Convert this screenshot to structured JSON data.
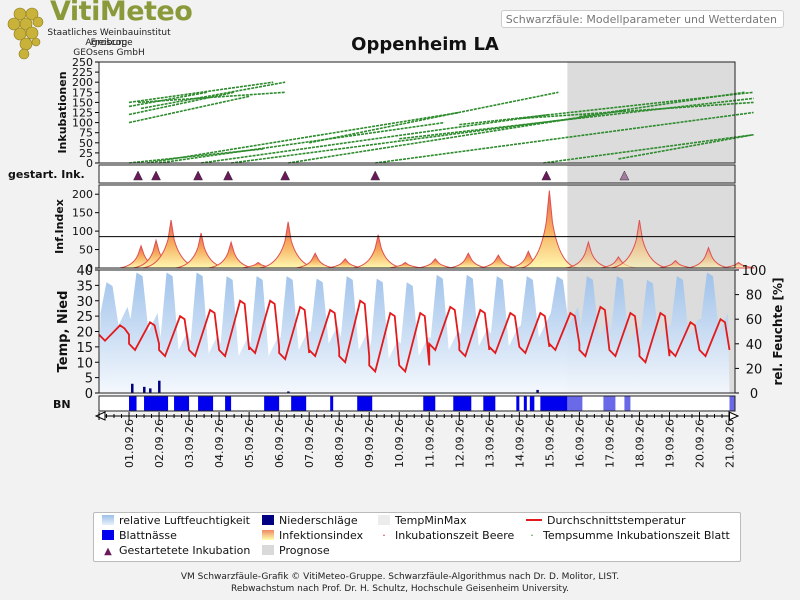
{
  "brand": {
    "name": "VitiMeteo",
    "lines": [
      "Staatliches Weinbauinstitut Freiburg",
      "Agroscope",
      "GEOsens GmbH"
    ]
  },
  "header": {
    "subtitle": "Schwarzfäule: Modellparameter und Wetterdaten"
  },
  "chart_title": "Oppenheim LA",
  "colors": {
    "temp": "#e31a1c",
    "humidity": "#a8c8ee",
    "incubation": "#2e8b2e",
    "leaf_wetness": "#0000ee",
    "precip": "#000080",
    "started_marker": "#6a1a5a",
    "forecast": "#d9d9d9",
    "infection_fill_top": "#ee8866",
    "infection_fill_bottom": "#ffffaa"
  },
  "chart_data": [
    {
      "panel": "incubation",
      "type": "line",
      "ylabel": "Inkubationen",
      "ylim": [
        0,
        250
      ],
      "yticks": [
        0,
        25,
        50,
        75,
        100,
        125,
        150,
        175,
        200,
        225,
        250
      ],
      "series_note": "Inkubationszeit Beere / Tempsumme Inkubationszeit Blatt",
      "lines": [
        {
          "start_day": 0.0,
          "end_day": 4.0,
          "y0": 100,
          "y1": 165
        },
        {
          "start_day": 0.0,
          "end_day": 3.5,
          "y0": 120,
          "y1": 175
        },
        {
          "start_day": 0.0,
          "end_day": 4.8,
          "y0": 150,
          "y1": 200
        },
        {
          "start_day": 0.0,
          "end_day": 2.6,
          "y0": 140,
          "y1": 175
        },
        {
          "start_day": 0.4,
          "end_day": 5.2,
          "y0": 135,
          "y1": 200
        },
        {
          "start_day": 0.3,
          "end_day": 5.2,
          "y0": 150,
          "y1": 175
        },
        {
          "start_day": 0.0,
          "end_day": 4.5,
          "y0": 0,
          "y1": 35
        },
        {
          "start_day": 0.6,
          "end_day": 11.0,
          "y0": 0,
          "y1": 125
        },
        {
          "start_day": 1.0,
          "end_day": 10.5,
          "y0": 0,
          "y1": 100
        },
        {
          "start_day": 2.4,
          "end_day": 14.0,
          "y0": 0,
          "y1": 120
        },
        {
          "start_day": 3.4,
          "end_day": 15.3,
          "y0": 0,
          "y1": 115
        },
        {
          "start_day": 5.3,
          "end_day": 16.5,
          "y0": 0,
          "y1": 130
        },
        {
          "start_day": 8.2,
          "end_day": 20.8,
          "y0": 0,
          "y1": 125
        },
        {
          "start_day": 13.8,
          "end_day": 20.8,
          "y0": 0,
          "y1": 70
        },
        {
          "start_day": 6.0,
          "end_day": 14.3,
          "y0": 50,
          "y1": 175
        },
        {
          "start_day": 9.0,
          "end_day": 20.8,
          "y0": 60,
          "y1": 160
        },
        {
          "start_day": 11.0,
          "end_day": 20.8,
          "y0": 95,
          "y1": 175
        },
        {
          "start_day": 13.0,
          "end_day": 20.8,
          "y0": 110,
          "y1": 150
        },
        {
          "start_day": 15.0,
          "end_day": 20.5,
          "y0": 115,
          "y1": 175
        },
        {
          "start_day": 16.3,
          "end_day": 20.8,
          "y0": 10,
          "y1": 70
        }
      ]
    },
    {
      "panel": "started_incubations",
      "type": "scatter",
      "ylabel": "gestart. Ink.",
      "x_days": [
        0.3,
        0.9,
        2.3,
        3.3,
        5.2,
        8.2,
        13.9,
        16.5
      ],
      "forecast_from_day": 14.6
    },
    {
      "panel": "infection_index",
      "type": "area",
      "ylabel": "Inf.Index",
      "ylim": [
        0,
        225
      ],
      "yticks": [
        0,
        50,
        100,
        150,
        200
      ],
      "threshold": 85,
      "peaks": [
        {
          "day": 0.4,
          "value": 60
        },
        {
          "day": 0.9,
          "value": 75
        },
        {
          "day": 1.4,
          "value": 130
        },
        {
          "day": 2.4,
          "value": 95
        },
        {
          "day": 3.4,
          "value": 70
        },
        {
          "day": 4.3,
          "value": 15
        },
        {
          "day": 5.3,
          "value": 125
        },
        {
          "day": 6.2,
          "value": 40
        },
        {
          "day": 7.2,
          "value": 25
        },
        {
          "day": 8.3,
          "value": 90
        },
        {
          "day": 9.2,
          "value": 15
        },
        {
          "day": 10.2,
          "value": 25
        },
        {
          "day": 11.3,
          "value": 40
        },
        {
          "day": 12.3,
          "value": 35
        },
        {
          "day": 13.3,
          "value": 45
        },
        {
          "day": 14.0,
          "value": 210
        },
        {
          "day": 15.3,
          "value": 70
        },
        {
          "day": 16.3,
          "value": 30
        },
        {
          "day": 17.0,
          "value": 130
        },
        {
          "day": 18.2,
          "value": 20
        },
        {
          "day": 19.3,
          "value": 55
        },
        {
          "day": 20.3,
          "value": 15
        }
      ]
    },
    {
      "panel": "weather",
      "type": "line",
      "ylabel_left": "Temp, Nied",
      "ylabel_right": "rel. Feuchte [%]",
      "ylim_left": [
        0,
        40
      ],
      "yticks_left": [
        0,
        5,
        10,
        15,
        20,
        25,
        30,
        35,
        40
      ],
      "ylim_right": [
        0,
        100
      ],
      "yticks_right": [
        0,
        20,
        40,
        60,
        80,
        100
      ],
      "temp_daily_min": [
        17,
        14,
        12,
        12,
        12,
        13,
        11,
        12,
        10,
        7,
        7,
        14,
        12,
        13,
        13,
        14,
        12,
        12,
        10,
        12,
        12
      ],
      "temp_daily_max": [
        22,
        23,
        25,
        27,
        30,
        30,
        28,
        27,
        30,
        26,
        26,
        28,
        27,
        26,
        26,
        26,
        28,
        26,
        26,
        23,
        24
      ],
      "humidity_daily_max": [
        90,
        98,
        98,
        98,
        95,
        95,
        95,
        93,
        95,
        93,
        90,
        96,
        96,
        95,
        95,
        95,
        95,
        95,
        92,
        95,
        98
      ],
      "humidity_daily_min": [
        55,
        50,
        35,
        32,
        30,
        30,
        35,
        40,
        35,
        28,
        30,
        35,
        38,
        38,
        45,
        55,
        45,
        40,
        40,
        45,
        50
      ],
      "precip": [
        {
          "day": 0.1,
          "value": 3
        },
        {
          "day": 0.5,
          "value": 2
        },
        {
          "day": 0.7,
          "value": 1.5
        },
        {
          "day": 1.0,
          "value": 4
        },
        {
          "day": 13.6,
          "value": 1
        },
        {
          "day": 5.3,
          "value": 0.5
        }
      ]
    },
    {
      "panel": "leaf_wetness",
      "type": "bar",
      "ylabel": "BN",
      "intervals_days": [
        [
          0.0,
          0.25
        ],
        [
          0.5,
          1.3
        ],
        [
          1.5,
          2.0
        ],
        [
          2.3,
          2.8
        ],
        [
          3.2,
          3.4
        ],
        [
          4.5,
          5.0
        ],
        [
          5.4,
          5.9
        ],
        [
          6.7,
          6.8
        ],
        [
          7.6,
          8.1
        ],
        [
          9.8,
          10.2
        ],
        [
          10.8,
          11.4
        ],
        [
          11.8,
          12.2
        ],
        [
          12.9,
          13.0
        ],
        [
          13.15,
          13.25
        ],
        [
          13.35,
          13.5
        ],
        [
          13.7,
          14.6
        ]
      ],
      "forecast_intervals_days": [
        [
          14.6,
          15.1
        ],
        [
          15.8,
          16.2
        ],
        [
          16.5,
          16.7
        ],
        [
          20.0,
          20.2
        ]
      ]
    }
  ],
  "x_axis": {
    "start_day_offset": -1,
    "forecast_start_day": 14.6,
    "total_days": 21,
    "tick_labels": [
      "01.09.26",
      "02.09.26",
      "03.09.26",
      "04.09.26",
      "05.09.26",
      "06.09.26",
      "07.09.26",
      "08.09.26",
      "09.09.26",
      "10.09.26",
      "11.09.26",
      "12.09.26",
      "13.09.26",
      "14.09.26",
      "15.09.26",
      "16.09.26",
      "17.09.26",
      "18.09.26",
      "19.09.26",
      "20.09.26",
      "21.09.26"
    ]
  },
  "legend": {
    "items": [
      {
        "label": "relative Luftfeuchtigkeit",
        "swatch": "humidity"
      },
      {
        "label": "Niederschläge",
        "swatch": "precip"
      },
      {
        "label": "TempMinMax",
        "swatch": "tempminmax"
      },
      {
        "label": "Durchschnittstemperatur",
        "swatch": "temp-line"
      },
      {
        "label": "Blattnässe",
        "swatch": "leaf"
      },
      {
        "label": "Infektionsindex",
        "swatch": "infection"
      },
      {
        "label": "Inkubationszeit Beere",
        "swatch": "dot-red"
      },
      {
        "label": "Tempsumme Inkubationszeit Blatt",
        "swatch": "dot-green"
      },
      {
        "label": "Gestartetete Inkubation",
        "swatch": "triangle"
      },
      {
        "label": "Prognose",
        "swatch": "forecast"
      }
    ]
  },
  "footer": {
    "line1": "VM Schwarzfäule-Grafik © VitiMeteo-Gruppe. Schwarzfäule-Algorithmus nach Dr. D. Molitor, LIST.",
    "line2": "Rebwachstum nach Prof. Dr. H. Schultz, Hochschule Geisenheim University."
  }
}
